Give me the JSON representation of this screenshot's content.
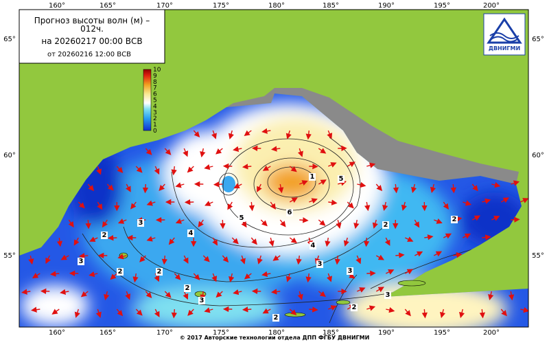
{
  "header": {
    "title_line1": "Прогноз высоты волн (м) –",
    "title_line2": "012ч.",
    "forecast_time": "на 20260217 00:00 ВСВ",
    "issued_time": "от 20260216 12:00 ВСВ"
  },
  "logo": {
    "text": "ДВНИГМИ"
  },
  "colorbar": {
    "ticks": [
      "0",
      "1",
      "2",
      "3",
      "4",
      "5",
      "6",
      "7",
      "8",
      "9",
      "10"
    ]
  },
  "longitudes": [
    "160°",
    "165°",
    "170°",
    "175°",
    "180°",
    "185°",
    "190°",
    "195°",
    "200°"
  ],
  "latitudes": [
    "65°",
    "60°",
    "55°"
  ],
  "contour_labels": [
    "1",
    "6",
    "5",
    "5",
    "4",
    "3",
    "2",
    "3",
    "2",
    "2",
    "2",
    "3",
    "3",
    "2",
    "3",
    "2",
    "3",
    "2",
    "4",
    "2"
  ],
  "footer": "© 2017 Авторские технологии отдела ДПП ФГБУ ДВНИГМИ"
}
